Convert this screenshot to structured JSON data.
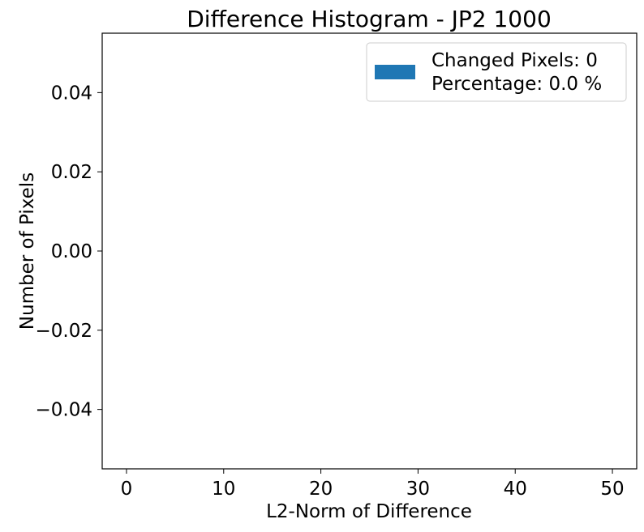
{
  "chart_data": {
    "type": "bar",
    "title": "Difference Histogram - JP2 1000",
    "xlabel": "L2-Norm of Difference",
    "ylabel": "Number of Pixels",
    "xlim": [
      -2.5,
      52.5
    ],
    "ylim": [
      -0.055,
      0.055
    ],
    "x_ticks": [
      0,
      10,
      20,
      30,
      40,
      50
    ],
    "y_ticks": [
      -0.04,
      -0.02,
      0.0,
      0.02,
      0.04
    ],
    "x_tick_labels": [
      "0",
      "10",
      "20",
      "30",
      "40",
      "50"
    ],
    "y_tick_labels": [
      "−0.04",
      "−0.02",
      "0.00",
      "0.02",
      "0.04"
    ],
    "grid": false,
    "legend_position": "top-right",
    "series": [
      {
        "name": "Changed Pixels: 0\nPercentage: 0.0 %",
        "color": "#1f77b4",
        "x": [],
        "values": []
      }
    ],
    "legend": {
      "lines": [
        "Changed Pixels: 0",
        "Percentage: 0.0 %"
      ],
      "color": "#1f77b4"
    }
  }
}
